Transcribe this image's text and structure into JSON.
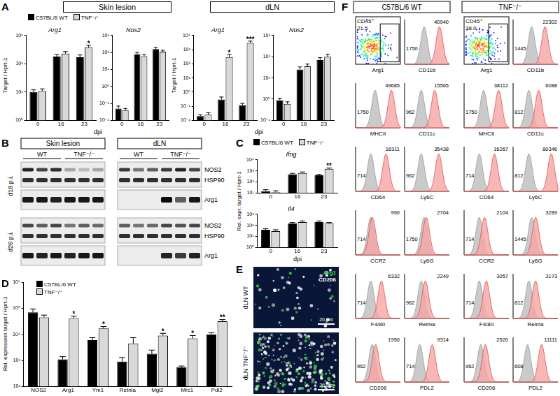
{
  "panel_labels": [
    "A",
    "B",
    "C",
    "D",
    "E",
    "F"
  ],
  "panel_A_headers": [
    "Skin lesion",
    "dLN"
  ],
  "chart_data": [
    {
      "type": "bar",
      "title": "Arg1",
      "ylabel": "Target / Hprt-1",
      "categories": [
        "0",
        "16",
        "23"
      ],
      "series": [
        {
          "name": "C57BL/6 WT",
          "color": "#000000",
          "values": [
            10,
            180,
            170
          ],
          "errors": [
            2,
            30,
            35
          ]
        },
        {
          "name": "TNF⁻/⁻",
          "color": "#d9d9d9",
          "values": [
            11,
            230,
            380
          ],
          "errors": [
            2,
            40,
            70
          ]
        }
      ],
      "ylim": [
        1,
        1000
      ],
      "yticks": [
        {
          "value": 1,
          "label": "10⁰"
        },
        {
          "value": 10,
          "label": "10¹"
        },
        {
          "value": 100,
          "label": "10²"
        },
        {
          "value": 1000,
          "label": "10³"
        }
      ],
      "log": "y",
      "grid": false,
      "legend": "top",
      "annotations": [
        {
          "category": "23",
          "series": "TNF⁻/⁻",
          "text": "*"
        }
      ]
    },
    {
      "type": "bar",
      "title": "Nos2",
      "xlabel": "dpi",
      "categories": [
        "0",
        "16",
        "23"
      ],
      "series": [
        {
          "name": "C57BL/6 WT",
          "color": "#000000",
          "values": [
            0.05,
            80,
            160
          ],
          "errors": [
            0.02,
            20,
            40
          ]
        },
        {
          "name": "TNF⁻/⁻",
          "color": "#d9d9d9",
          "values": [
            0.04,
            60,
            110
          ],
          "errors": [
            0.01,
            15,
            25
          ]
        }
      ],
      "ylim": [
        0.01,
        1000
      ],
      "yticks": [
        {
          "value": 0.01,
          "label": "10⁻²"
        },
        {
          "value": 0.1,
          "label": "10⁻¹"
        },
        {
          "value": 1,
          "label": "10⁰"
        },
        {
          "value": 10,
          "label": "10¹"
        },
        {
          "value": 100,
          "label": "10²"
        },
        {
          "value": 1000,
          "label": "10³"
        }
      ],
      "log": "y",
      "grid": false
    },
    {
      "type": "bar",
      "title": "Arg1",
      "ylabel": "Target / Hprt-1",
      "categories": [
        "0",
        "16",
        "23"
      ],
      "series": [
        {
          "name": "C57BL/6 WT",
          "color": "#000000",
          "values": [
            0.02,
            0.3,
            0.12
          ],
          "errors": [
            0.005,
            0.15,
            0.04
          ]
        },
        {
          "name": "TNF⁻/⁻",
          "color": "#d9d9d9",
          "values": [
            0.025,
            300,
            3000
          ],
          "errors": [
            0.01,
            150,
            1000
          ]
        }
      ],
      "ylim": [
        0.01,
        10000
      ],
      "yticks": [
        {
          "value": 0.01,
          "label": "10⁻²"
        },
        {
          "value": 0.1,
          "label": "10⁻¹"
        },
        {
          "value": 1,
          "label": "10⁰"
        },
        {
          "value": 10,
          "label": "10¹"
        },
        {
          "value": 100,
          "label": "10²"
        },
        {
          "value": 1000,
          "label": "10³"
        },
        {
          "value": 10000,
          "label": "10⁴"
        }
      ],
      "log": "y",
      "grid": false,
      "annotations": [
        {
          "category": "16",
          "series": "TNF⁻/⁻",
          "text": "*"
        },
        {
          "category": "23",
          "series": "TNF⁻/⁻",
          "text": "***"
        }
      ]
    },
    {
      "type": "bar",
      "title": "Nos2",
      "xlabel": "dpi",
      "categories": [
        "0",
        "16",
        "23"
      ],
      "series": [
        {
          "name": "C57BL/6 WT",
          "color": "#000000",
          "values": [
            0.9,
            25,
            70
          ],
          "errors": [
            0.2,
            8,
            20
          ]
        },
        {
          "name": "TNF⁻/⁻",
          "color": "#d9d9d9",
          "values": [
            0.6,
            35,
            100
          ],
          "errors": [
            0.15,
            10,
            30
          ]
        }
      ],
      "ylim": [
        0.1,
        1000
      ],
      "yticks": [
        {
          "value": 0.1,
          "label": "10⁻¹"
        },
        {
          "value": 1,
          "label": "10⁰"
        },
        {
          "value": 10,
          "label": "10¹"
        },
        {
          "value": 100,
          "label": "10²"
        },
        {
          "value": 1000,
          "label": "10³"
        }
      ],
      "log": "y",
      "grid": false
    },
    {
      "type": "bar",
      "title": "Ifng",
      "ylabel": "Rel. expr. target / Hprt-1",
      "categories": [
        "0",
        "16",
        "23"
      ],
      "series": [
        {
          "name": "C57BL/6 WT",
          "color": "#000000",
          "values": [
            15,
            500,
            400
          ],
          "errors": [
            5,
            100,
            80
          ]
        },
        {
          "name": "TNF⁻/⁻",
          "color": "#d9d9d9",
          "values": [
            12,
            650,
            1500
          ],
          "errors": [
            4,
            150,
            300
          ]
        }
      ],
      "ylim": [
        10,
        10000
      ],
      "yticks": [
        {
          "value": 10,
          "label": "10¹"
        },
        {
          "value": 100,
          "label": "10²"
        },
        {
          "value": 1000,
          "label": "10³"
        },
        {
          "value": 10000,
          "label": "10⁴"
        }
      ],
      "log": "y",
      "grid": false,
      "legend": "top",
      "annotations": [
        {
          "category": "23",
          "series": "TNF⁻/⁻",
          "text": "**"
        }
      ]
    },
    {
      "type": "bar",
      "title": "Il4",
      "xlabel": "dpi",
      "categories": [
        "0",
        "16",
        "23"
      ],
      "series": [
        {
          "name": "C57BL/6 WT",
          "color": "#000000",
          "values": [
            40,
            150,
            200
          ],
          "errors": [
            10,
            30,
            50
          ]
        },
        {
          "name": "TNF⁻/⁻",
          "color": "#d9d9d9",
          "values": [
            30,
            200,
            150
          ],
          "errors": [
            10,
            50,
            30
          ]
        }
      ],
      "ylim": [
        1,
        1000
      ],
      "yticks": [
        {
          "value": 1,
          "label": "10⁰"
        },
        {
          "value": 10,
          "label": "10¹"
        },
        {
          "value": 100,
          "label": "10²"
        },
        {
          "value": 1000,
          "label": "10³"
        }
      ],
      "log": "y",
      "grid": false
    },
    {
      "type": "bar",
      "ylabel": "Rel. expression target / Hprt-1",
      "categories": [
        "NOS2",
        "Arg1",
        "Ym1",
        "Retnla",
        "Mgl2",
        "Mrc1",
        "Pdl2"
      ],
      "series": [
        {
          "name": "C57BL/6 WT",
          "color": "#000000",
          "values": [
            70000,
            1100,
            6000,
            900,
            1800,
            550,
            10000
          ],
          "errors": [
            25000,
            300,
            1500,
            400,
            700,
            60,
            1500
          ]
        },
        {
          "name": "TNF⁻/⁻",
          "color": "#d9d9d9",
          "values": [
            45000,
            42000,
            17000,
            4500,
            9000,
            7000,
            32000
          ],
          "errors": [
            10000,
            8000,
            3000,
            3000,
            2000,
            2000,
            5000
          ]
        }
      ],
      "ylim": [
        100,
        1000000
      ],
      "yticks": [
        {
          "value": 100,
          "label": "10²"
        },
        {
          "value": 1000,
          "label": "10³"
        },
        {
          "value": 10000,
          "label": "10⁴"
        },
        {
          "value": 100000,
          "label": "10⁵"
        },
        {
          "value": 1000000,
          "label": "10⁶"
        }
      ],
      "log": "y",
      "grid": false,
      "legend": "top",
      "annotations": [
        {
          "category": "Arg1",
          "series": "TNF⁻/⁻",
          "text": "*"
        },
        {
          "category": "Ym1",
          "series": "TNF⁻/⁻",
          "text": "*"
        },
        {
          "category": "Mgl2",
          "series": "TNF⁻/⁻",
          "text": "*"
        },
        {
          "category": "Mrc1",
          "series": "TNF⁻/⁻",
          "text": "*"
        },
        {
          "category": "Pdl2",
          "series": "TNF⁻/⁻",
          "text": "**"
        }
      ]
    }
  ],
  "blot": {
    "columns": [
      "Skin lesion",
      "dLN"
    ],
    "groups": [
      "WT",
      "TNF⁻/⁻"
    ],
    "timepoints": [
      {
        "label": "d18 p.i.",
        "rows": [
          {
            "label": "NOS2",
            "intensity": [
              0.85,
              0.7,
              0.8,
              0.3,
              0.2,
              0.3,
              0.75,
              0.5,
              0.6,
              0.75,
              0.85,
              0.7
            ]
          },
          {
            "label": "HSP90",
            "intensity": [
              0.8,
              0.8,
              0.8,
              0.8,
              0.8,
              0.8,
              0.8,
              0.8,
              0.8,
              0.8,
              0.8,
              0.8
            ]
          },
          {
            "label": "Arg1",
            "intensity": [
              0.9,
              0.9,
              0.85,
              0.9,
              0.9,
              0.9,
              0,
              0,
              0,
              0.95,
              0.6,
              0.9
            ]
          }
        ]
      },
      {
        "label": "d26 p.i.",
        "rows": [
          {
            "label": "NOS2",
            "intensity": [
              0.7,
              0.6,
              0.7,
              0.5,
              0.6,
              0.55,
              0.6,
              0.5,
              0.55,
              0.7,
              0.65,
              0.7
            ]
          },
          {
            "label": "HSP90",
            "intensity": [
              0.8,
              0.8,
              0.8,
              0.8,
              0.8,
              0.8,
              0.8,
              0.8,
              0.8,
              0.8,
              0.8,
              0.8
            ]
          },
          {
            "label": "Arg1",
            "intensity": [
              0.9,
              0.85,
              0.9,
              0.85,
              0.9,
              0.9,
              0,
              0,
              0,
              0.85,
              0.75,
              0.85
            ]
          }
        ]
      }
    ]
  },
  "micrographs": {
    "images": [
      {
        "label": "dLN WT",
        "stains": [
          {
            "name": "Arg1",
            "color": "#39e639"
          },
          {
            "name": "CD206",
            "color": "#ffffff"
          }
        ],
        "scale_bar": "20 µm"
      },
      {
        "label": "dLN TNF⁻/⁻",
        "scale_bar": "20 µm"
      }
    ]
  },
  "flow": {
    "columns": [
      {
        "title": "C57BL/6 WT",
        "gate_parent": "CD45⁺",
        "gate": {
          "value": 21.5,
          "label": "21.5"
        },
        "gate_axis": "Arg1",
        "histograms": [
          {
            "name": "CD11b",
            "control": 1750,
            "stained": 40940
          },
          {
            "name": "MHCII",
            "control": 1750,
            "stained": 49685
          },
          {
            "name": "CD11c",
            "control": 962,
            "stained": 15565
          },
          {
            "name": "CD64",
            "control": 714,
            "stained": 16311
          },
          {
            "name": "Ly6C",
            "control": 962,
            "stained": 35438
          },
          {
            "name": "CCR2",
            "control": 714,
            "stained": 990
          },
          {
            "name": "Ly6G",
            "control": 1750,
            "stained": 2704
          },
          {
            "name": "F4/80",
            "control": 714,
            "stained": 6332
          },
          {
            "name": "Relma",
            "control": 962,
            "stained": 2249
          },
          {
            "name": "CD206",
            "control": 962,
            "stained": 1950
          },
          {
            "name": "PDL2",
            "control": 714,
            "stained": 9314
          }
        ]
      },
      {
        "title": "TNF⁻/⁻",
        "gate_parent": "CD45⁺",
        "gate": {
          "value": 38.0,
          "label": "38.0"
        },
        "gate_axis": "Arg1",
        "histograms": [
          {
            "name": "CD11b",
            "control": 1445,
            "stained": 22302
          },
          {
            "name": "MHCII",
            "control": 1750,
            "stained": 38112
          },
          {
            "name": "CD11c",
            "control": 812,
            "stained": 6088
          },
          {
            "name": "CD64",
            "control": 714,
            "stained": 16267
          },
          {
            "name": "Ly6C",
            "control": 812,
            "stained": 80346
          },
          {
            "name": "CCR2",
            "control": 714,
            "stained": 2104
          },
          {
            "name": "Ly6G",
            "control": 1445,
            "stained": 3289
          },
          {
            "name": "F4/80",
            "control": 714,
            "stained": 3057
          },
          {
            "name": "Relma",
            "control": 812,
            "stained": 3173
          },
          {
            "name": "CD206",
            "control": 962,
            "stained": 2520
          },
          {
            "name": "PDL2",
            "control": 608,
            "stained": 11111
          }
        ]
      }
    ]
  }
}
